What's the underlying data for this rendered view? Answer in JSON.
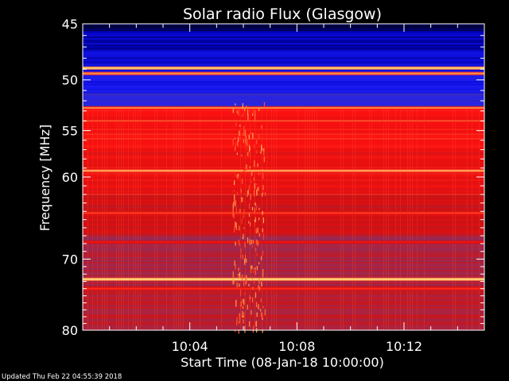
{
  "chart_data": {
    "type": "heatmap",
    "title": "Solar radio Flux (Glasgow)",
    "xlabel": "Start Time (08-Jan-18 10:00:00)",
    "ylabel": "Frequency [MHz]",
    "x_ticks": [
      "10:04",
      "10:08",
      "10:12"
    ],
    "x_tick_minutes": [
      4,
      8,
      12
    ],
    "xlim_minutes": [
      0,
      15
    ],
    "y_ticks": [
      45,
      50,
      55,
      60,
      70,
      80
    ],
    "ylim_mhz": [
      45,
      80
    ],
    "y_scale": "log",
    "grid": false,
    "legend": "none",
    "colormap": [
      "#000040",
      "#0000c0",
      "#2020ff",
      "#4030a0",
      "#903060",
      "#d01010",
      "#ff1010",
      "#ff8040",
      "#ffe080"
    ],
    "background_level": [
      {
        "from_mhz": 45.0,
        "to_mhz": 45.6,
        "level": 0.0
      },
      {
        "from_mhz": 45.6,
        "to_mhz": 47.2,
        "level": 0.12
      },
      {
        "from_mhz": 47.2,
        "to_mhz": 48.6,
        "level": 0.16
      },
      {
        "from_mhz": 48.6,
        "to_mhz": 51.2,
        "level": 0.22
      },
      {
        "from_mhz": 51.2,
        "to_mhz": 52.6,
        "level": 0.3
      },
      {
        "from_mhz": 52.6,
        "to_mhz": 57.0,
        "level": 0.74
      },
      {
        "from_mhz": 57.0,
        "to_mhz": 62.0,
        "level": 0.7
      },
      {
        "from_mhz": 62.0,
        "to_mhz": 67.0,
        "level": 0.62
      },
      {
        "from_mhz": 67.0,
        "to_mhz": 73.5,
        "level": 0.55
      },
      {
        "from_mhz": 73.5,
        "to_mhz": 80.0,
        "level": 0.58
      }
    ],
    "band_lines": [
      {
        "mhz": 48.9,
        "level": 0.98
      },
      {
        "mhz": 49.4,
        "level": 0.9
      },
      {
        "mhz": 52.7,
        "level": 0.88
      },
      {
        "mhz": 54.0,
        "level": 0.82
      },
      {
        "mhz": 59.3,
        "level": 0.92
      },
      {
        "mhz": 64.2,
        "level": 0.8
      },
      {
        "mhz": 67.8,
        "level": 0.72
      },
      {
        "mhz": 72.7,
        "level": 0.99
      },
      {
        "mhz": 74.0,
        "level": 0.78
      }
    ],
    "burst": {
      "from_minute": 5.6,
      "to_minute": 6.8,
      "from_mhz": 52.0,
      "to_mhz": 80.0,
      "level": 0.93
    }
  },
  "footer": {
    "updated": "Updated Thu Feb 22 04:55:39 2018"
  }
}
